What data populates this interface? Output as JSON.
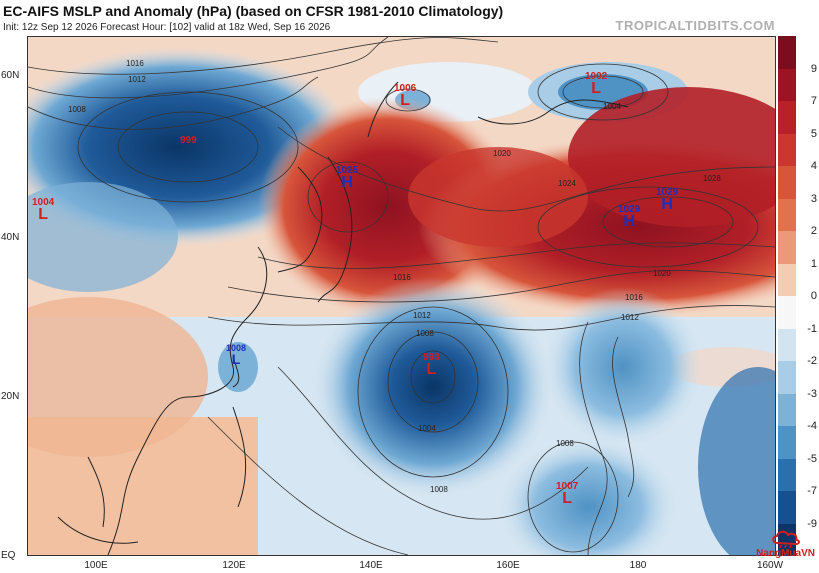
{
  "header": {
    "title": "EC-AIFS MSLP and Anomaly (hPa) (based on CFSR 1981-2010 Climatology)",
    "subtitle": "Init: 12z Sep 12 2026   Forecast Hour: [102]   valid at 18z Wed, Sep 16 2026",
    "brand": "TROPICALTIDBITS.COM"
  },
  "axes": {
    "lat_labels": [
      "60N",
      "40N",
      "20N",
      "EQ"
    ],
    "lon_labels": [
      "100E",
      "120E",
      "140E",
      "160E",
      "180",
      "160W"
    ]
  },
  "colorbar": {
    "ticks": [
      "9",
      "7",
      "5",
      "4",
      "3",
      "2",
      "1",
      "0",
      "-1",
      "-2",
      "-3",
      "-4",
      "-5",
      "-7",
      "-9"
    ],
    "colors": [
      "#7a0d1e",
      "#9c1424",
      "#b82128",
      "#c9372e",
      "#d7553b",
      "#e1724f",
      "#eb9a78",
      "#f5cbb3",
      "#f7f7f7",
      "#d2e4f0",
      "#a9cde6",
      "#7db2d8",
      "#4f92c4",
      "#2c6fad",
      "#16508e",
      "#0a3566"
    ]
  },
  "map_features": {
    "highs": [
      {
        "pressure": "1025",
        "symbol": "H"
      },
      {
        "pressure": "1029",
        "symbol": "H"
      },
      {
        "pressure": "1029",
        "symbol": "H"
      }
    ],
    "lows": [
      {
        "pressure": "1006",
        "symbol": "L"
      },
      {
        "pressure": "1002",
        "symbol": "L"
      },
      {
        "pressure": "999",
        "symbol": "L"
      },
      {
        "pressure": "1004",
        "symbol": "L"
      },
      {
        "pressure": "993",
        "symbol": "L"
      },
      {
        "pressure": "1007",
        "symbol": "L"
      },
      {
        "pressure": "1008",
        "symbol": "L"
      }
    ],
    "isobar_labels": [
      "1016",
      "1012",
      "1008",
      "1004",
      "1020",
      "1024",
      "1028",
      "1016",
      "1012",
      "1008",
      "1004",
      "1020",
      "1016",
      "1012",
      "1008",
      "1008"
    ]
  },
  "watermark": {
    "name": "NangMuaVN",
    "icon": "cloud-rain-icon"
  }
}
